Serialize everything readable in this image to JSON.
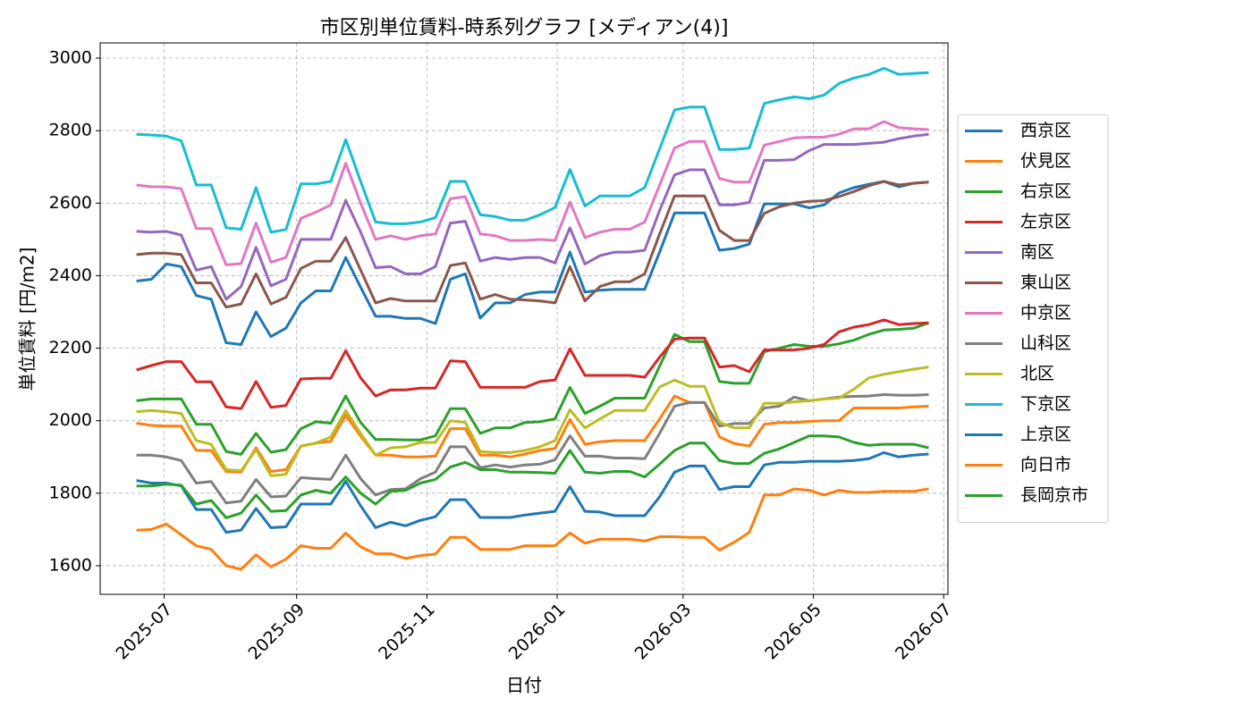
{
  "chart_data": {
    "type": "line",
    "title": "市区別単位賃料-時系列グラフ [メディアン(4)]",
    "x_label": "日付",
    "y_label": "単位賃料 [円/m2]",
    "x": [
      "2025-06-18",
      "2025-06-25",
      "2025-07-02",
      "2025-07-09",
      "2025-07-16",
      "2025-07-23",
      "2025-07-30",
      "2025-08-06",
      "2025-08-13",
      "2025-08-20",
      "2025-08-27",
      "2025-09-03",
      "2025-09-10",
      "2025-09-17",
      "2025-09-24",
      "2025-10-01",
      "2025-10-08",
      "2025-10-15",
      "2025-10-22",
      "2025-10-29",
      "2025-11-05",
      "2025-11-12",
      "2025-11-19",
      "2025-11-26",
      "2025-12-03",
      "2025-12-10",
      "2025-12-17",
      "2025-12-24",
      "2025-12-31",
      "2026-01-07",
      "2026-01-14",
      "2026-01-21",
      "2026-01-28",
      "2026-02-04",
      "2026-02-11",
      "2026-02-18",
      "2026-02-25",
      "2026-03-04",
      "2026-03-11",
      "2026-03-18",
      "2026-03-25",
      "2026-04-01",
      "2026-04-08",
      "2026-04-15",
      "2026-04-22",
      "2026-04-29",
      "2026-05-06",
      "2026-05-13",
      "2026-05-20",
      "2026-05-27",
      "2026-06-03",
      "2026-06-10",
      "2026-06-17",
      "2026-06-24"
    ],
    "xlim": [
      "2025-06-01",
      "2026-07-03"
    ],
    "xticks": [
      {
        "value": "2025-07-01",
        "label": "2025-07"
      },
      {
        "value": "2025-09-01",
        "label": "2025-09"
      },
      {
        "value": "2025-11-01",
        "label": "2025-11"
      },
      {
        "value": "2026-01-01",
        "label": "2026-01"
      },
      {
        "value": "2026-03-01",
        "label": "2026-03"
      },
      {
        "value": "2026-05-01",
        "label": "2026-05"
      },
      {
        "value": "2026-07-01",
        "label": "2026-07"
      }
    ],
    "ylim": [
      1521,
      3042
    ],
    "yticks": [
      1600,
      1800,
      2000,
      2200,
      2400,
      2600,
      2800,
      3000
    ],
    "grid": true,
    "legend": "outside right",
    "series": [
      {
        "name": "西京区",
        "color": "#1f77b4",
        "values": [
          2385,
          2390,
          2432,
          2425,
          2345,
          2335,
          2215,
          2210,
          2300,
          2232,
          2255,
          2325,
          2358,
          2358,
          2450,
          2368,
          2288,
          2288,
          2282,
          2282,
          2268,
          2390,
          2405,
          2283,
          2325,
          2325,
          2348,
          2355,
          2355,
          2465,
          2355,
          2360,
          2362,
          2362,
          2362,
          2465,
          2573,
          2573,
          2573,
          2470,
          2475,
          2487,
          2598,
          2598,
          2598,
          2587,
          2595,
          2628,
          2643,
          2652,
          2660,
          2645,
          2655,
          2658
        ]
      },
      {
        "name": "伏見区",
        "color": "#ff7f0e",
        "values": [
          1993,
          1987,
          1985,
          1985,
          1918,
          1918,
          1860,
          1858,
          1925,
          1860,
          1865,
          1930,
          1938,
          1943,
          2015,
          1957,
          1905,
          1905,
          1900,
          1900,
          1902,
          1978,
          1978,
          1905,
          1905,
          1900,
          1908,
          1918,
          1923,
          2003,
          1935,
          1942,
          1945,
          1945,
          1945,
          2005,
          2068,
          2050,
          2050,
          1955,
          1937,
          1930,
          1990,
          1995,
          1995,
          1998,
          2000,
          2000,
          2035,
          2035,
          2035,
          2035,
          2038,
          2040
        ]
      },
      {
        "name": "右京区",
        "color": "#2ca02c",
        "values": [
          2055,
          2060,
          2060,
          2060,
          1990,
          1990,
          1915,
          1907,
          1965,
          1913,
          1920,
          1978,
          1997,
          1993,
          2068,
          1995,
          1948,
          1948,
          1947,
          1947,
          1958,
          2033,
          2033,
          1965,
          1980,
          1980,
          1995,
          1997,
          2005,
          2092,
          2020,
          2040,
          2062,
          2062,
          2062,
          2150,
          2238,
          2218,
          2218,
          2108,
          2103,
          2103,
          2190,
          2200,
          2210,
          2205,
          2205,
          2212,
          2222,
          2238,
          2250,
          2252,
          2255,
          2270
        ]
      },
      {
        "name": "左京区",
        "color": "#d62728",
        "values": [
          2140,
          2152,
          2163,
          2163,
          2107,
          2107,
          2038,
          2033,
          2108,
          2037,
          2042,
          2115,
          2117,
          2117,
          2193,
          2118,
          2068,
          2085,
          2085,
          2090,
          2090,
          2165,
          2163,
          2092,
          2092,
          2092,
          2092,
          2108,
          2112,
          2198,
          2125,
          2125,
          2125,
          2125,
          2120,
          2175,
          2225,
          2228,
          2228,
          2148,
          2152,
          2135,
          2195,
          2195,
          2195,
          2200,
          2210,
          2245,
          2258,
          2265,
          2278,
          2265,
          2268,
          2270
        ]
      },
      {
        "name": "南区",
        "color": "#9467bd",
        "values": [
          2522,
          2520,
          2522,
          2512,
          2415,
          2425,
          2335,
          2370,
          2478,
          2372,
          2390,
          2500,
          2500,
          2500,
          2608,
          2520,
          2422,
          2425,
          2405,
          2405,
          2425,
          2545,
          2550,
          2440,
          2450,
          2445,
          2450,
          2450,
          2435,
          2532,
          2432,
          2455,
          2465,
          2465,
          2470,
          2580,
          2678,
          2692,
          2692,
          2595,
          2595,
          2602,
          2718,
          2718,
          2720,
          2745,
          2762,
          2762,
          2762,
          2765,
          2768,
          2778,
          2785,
          2790
        ]
      },
      {
        "name": "東山区",
        "color": "#8c564b",
        "values": [
          2458,
          2462,
          2462,
          2458,
          2380,
          2380,
          2313,
          2322,
          2405,
          2322,
          2340,
          2420,
          2440,
          2440,
          2505,
          2415,
          2325,
          2337,
          2330,
          2330,
          2330,
          2428,
          2435,
          2335,
          2348,
          2335,
          2333,
          2330,
          2325,
          2425,
          2330,
          2370,
          2383,
          2383,
          2405,
          2515,
          2620,
          2620,
          2620,
          2525,
          2497,
          2497,
          2572,
          2590,
          2600,
          2605,
          2607,
          2618,
          2632,
          2648,
          2660,
          2650,
          2655,
          2658
        ]
      },
      {
        "name": "中京区",
        "color": "#e377c2",
        "values": [
          2650,
          2645,
          2645,
          2640,
          2530,
          2530,
          2430,
          2433,
          2545,
          2437,
          2450,
          2558,
          2575,
          2595,
          2710,
          2600,
          2500,
          2510,
          2500,
          2510,
          2515,
          2612,
          2618,
          2515,
          2510,
          2497,
          2497,
          2500,
          2497,
          2603,
          2505,
          2520,
          2528,
          2528,
          2548,
          2650,
          2752,
          2770,
          2770,
          2668,
          2658,
          2658,
          2760,
          2770,
          2780,
          2782,
          2782,
          2790,
          2805,
          2805,
          2825,
          2808,
          2805,
          2803
        ]
      },
      {
        "name": "山科区",
        "color": "#7f7f7f",
        "values": [
          1905,
          1905,
          1900,
          1890,
          1828,
          1832,
          1773,
          1778,
          1838,
          1790,
          1792,
          1843,
          1840,
          1838,
          1905,
          1840,
          1795,
          1810,
          1812,
          1840,
          1858,
          1928,
          1928,
          1870,
          1878,
          1872,
          1878,
          1880,
          1892,
          1958,
          1902,
          1902,
          1897,
          1897,
          1895,
          1965,
          2040,
          2050,
          2050,
          1985,
          1992,
          1992,
          2035,
          2040,
          2065,
          2055,
          2060,
          2065,
          2067,
          2068,
          2072,
          2070,
          2070,
          2072
        ]
      },
      {
        "name": "北区",
        "color": "#bcbd22",
        "values": [
          2025,
          2028,
          2025,
          2020,
          1945,
          1935,
          1865,
          1862,
          1920,
          1848,
          1852,
          1930,
          1938,
          1955,
          2028,
          1965,
          1905,
          1925,
          1928,
          1940,
          1940,
          2000,
          1995,
          1915,
          1912,
          1912,
          1918,
          1928,
          1945,
          2030,
          1980,
          2005,
          2028,
          2028,
          2028,
          2093,
          2112,
          2095,
          2095,
          1995,
          1980,
          1980,
          2048,
          2048,
          2052,
          2055,
          2060,
          2062,
          2087,
          2118,
          2128,
          2135,
          2142,
          2148
        ]
      },
      {
        "name": "下京区",
        "color": "#17becf",
        "values": [
          2790,
          2788,
          2785,
          2772,
          2650,
          2650,
          2532,
          2528,
          2643,
          2520,
          2527,
          2653,
          2653,
          2660,
          2775,
          2660,
          2548,
          2543,
          2543,
          2548,
          2560,
          2660,
          2660,
          2568,
          2563,
          2553,
          2553,
          2568,
          2588,
          2693,
          2592,
          2620,
          2620,
          2620,
          2643,
          2750,
          2857,
          2865,
          2865,
          2748,
          2748,
          2752,
          2875,
          2885,
          2893,
          2888,
          2898,
          2930,
          2945,
          2955,
          2972,
          2955,
          2958,
          2960
        ]
      },
      {
        "name": "上京区",
        "color": "#1f77b4",
        "values": [
          1835,
          1828,
          1828,
          1820,
          1755,
          1755,
          1692,
          1698,
          1758,
          1705,
          1707,
          1770,
          1770,
          1770,
          1833,
          1765,
          1705,
          1720,
          1710,
          1725,
          1735,
          1782,
          1782,
          1733,
          1733,
          1733,
          1740,
          1745,
          1750,
          1818,
          1750,
          1748,
          1738,
          1738,
          1738,
          1790,
          1858,
          1875,
          1875,
          1810,
          1818,
          1818,
          1878,
          1885,
          1885,
          1888,
          1888,
          1888,
          1890,
          1895,
          1912,
          1900,
          1905,
          1908
        ]
      },
      {
        "name": "向日市",
        "color": "#ff7f0e",
        "values": [
          1698,
          1700,
          1715,
          1685,
          1655,
          1645,
          1600,
          1590,
          1630,
          1597,
          1618,
          1655,
          1648,
          1648,
          1690,
          1652,
          1633,
          1633,
          1620,
          1628,
          1632,
          1678,
          1678,
          1645,
          1645,
          1645,
          1655,
          1655,
          1655,
          1690,
          1662,
          1673,
          1673,
          1673,
          1668,
          1680,
          1680,
          1678,
          1678,
          1643,
          1665,
          1692,
          1795,
          1795,
          1812,
          1808,
          1795,
          1808,
          1802,
          1802,
          1805,
          1805,
          1805,
          1812
        ]
      },
      {
        "name": "長岡京市",
        "color": "#2ca02c",
        "values": [
          1820,
          1820,
          1825,
          1822,
          1770,
          1780,
          1732,
          1745,
          1795,
          1750,
          1752,
          1795,
          1808,
          1800,
          1845,
          1800,
          1770,
          1805,
          1808,
          1828,
          1838,
          1872,
          1885,
          1865,
          1865,
          1858,
          1858,
          1857,
          1855,
          1918,
          1858,
          1855,
          1860,
          1860,
          1845,
          1880,
          1918,
          1938,
          1938,
          1890,
          1882,
          1882,
          1910,
          1922,
          1940,
          1958,
          1958,
          1955,
          1940,
          1932,
          1935,
          1935,
          1935,
          1925
        ]
      }
    ]
  }
}
